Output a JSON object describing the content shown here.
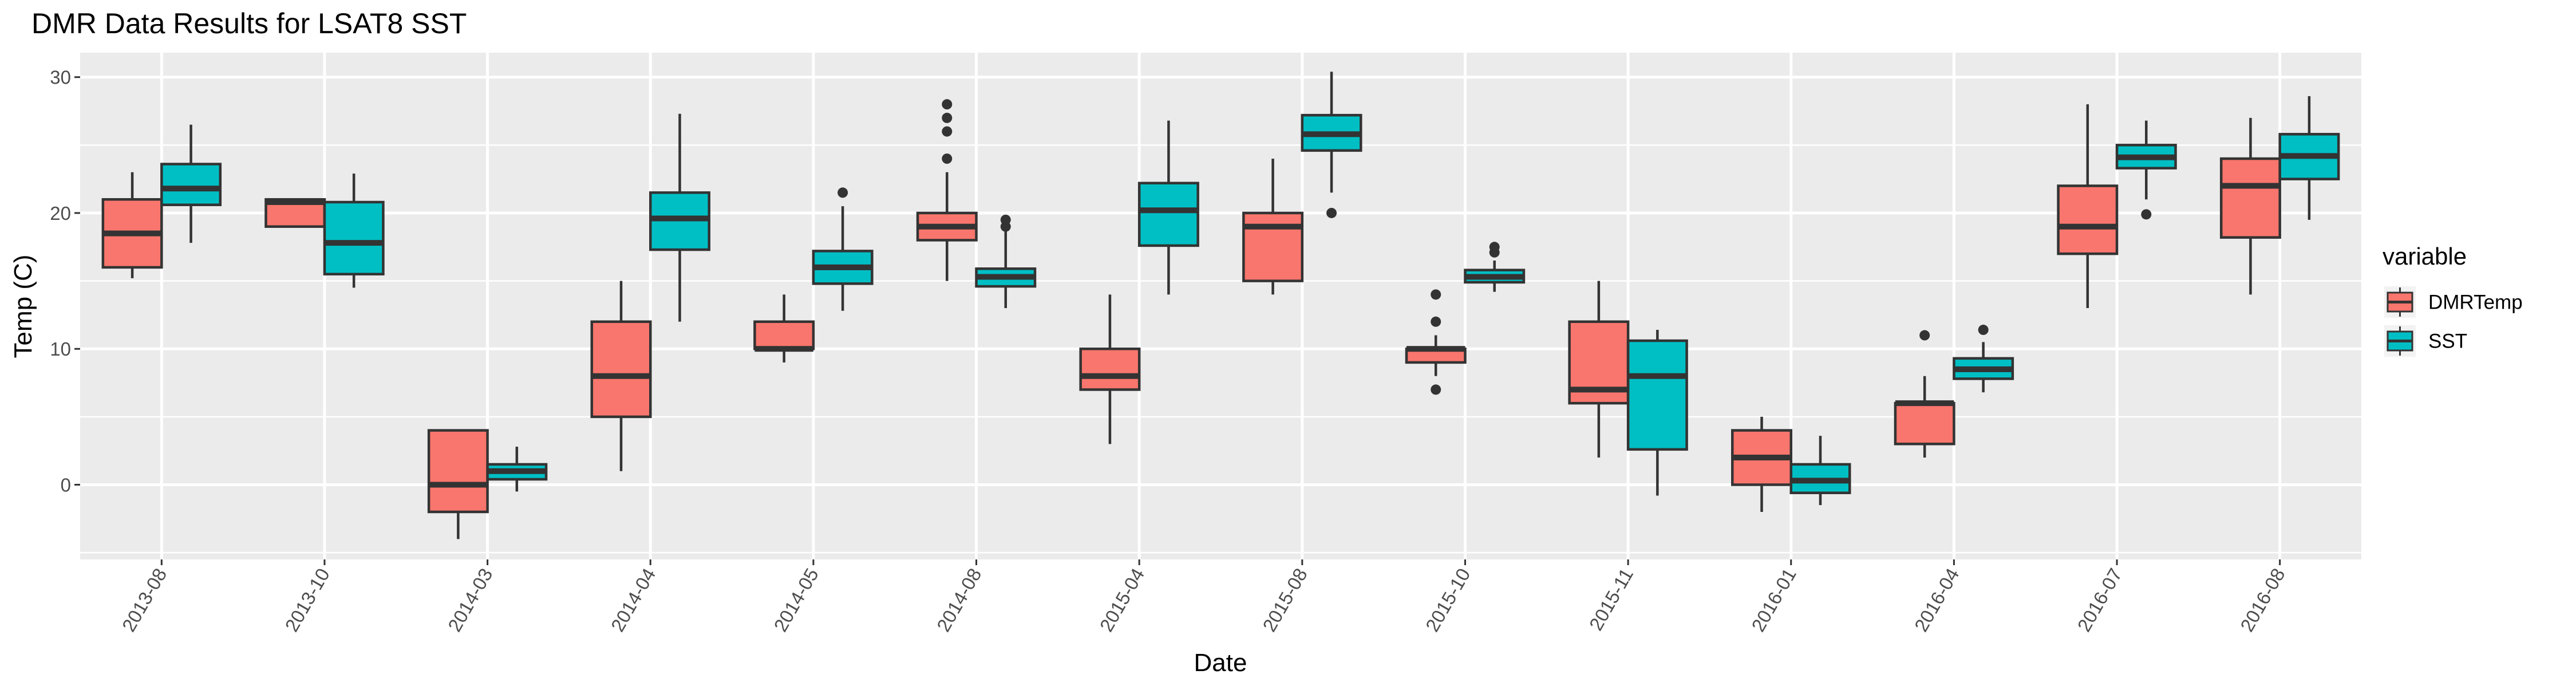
{
  "chart_data": {
    "type": "box",
    "title": "DMR Data Results for LSAT8 SST",
    "xlabel": "Date",
    "ylabel": "Temp (C)",
    "ylim": [
      -5.5,
      31.8
    ],
    "yticks": [
      0,
      10,
      20,
      30
    ],
    "categories": [
      "2013-08",
      "2013-10",
      "2014-03",
      "2014-04",
      "2014-05",
      "2014-08",
      "2015-04",
      "2015-08",
      "2015-10",
      "2015-11",
      "2016-01",
      "2016-04",
      "2016-07",
      "2016-08"
    ],
    "legend": {
      "title": "variable",
      "position": "right"
    },
    "grid": true,
    "series": [
      {
        "name": "DMRTemp",
        "color": "#F8766D",
        "boxes": [
          {
            "min": 15.2,
            "q1": 16.0,
            "median": 18.5,
            "q3": 21.0,
            "max": 23.0,
            "outliers": []
          },
          {
            "min": 19.0,
            "q1": 19.0,
            "median": 20.8,
            "q3": 21.0,
            "max": 21.0,
            "outliers": []
          },
          {
            "min": -4.0,
            "q1": -2.0,
            "median": 0.0,
            "q3": 4.0,
            "max": 4.0,
            "outliers": []
          },
          {
            "min": 1.0,
            "q1": 5.0,
            "median": 8.0,
            "q3": 12.0,
            "max": 15.0,
            "outliers": []
          },
          {
            "min": 9.0,
            "q1": 10.0,
            "median": 10.0,
            "q3": 12.0,
            "max": 14.0,
            "outliers": []
          },
          {
            "min": 15.0,
            "q1": 18.0,
            "median": 19.0,
            "q3": 20.0,
            "max": 23.0,
            "outliers": [
              24.0,
              26.0,
              27.0,
              28.0
            ]
          },
          {
            "min": 3.0,
            "q1": 7.0,
            "median": 8.0,
            "q3": 10.0,
            "max": 14.0,
            "outliers": []
          },
          {
            "min": 14.0,
            "q1": 15.0,
            "median": 19.0,
            "q3": 20.0,
            "max": 24.0,
            "outliers": []
          },
          {
            "min": 8.0,
            "q1": 9.0,
            "median": 10.0,
            "q3": 10.0,
            "max": 11.0,
            "outliers": [
              7.0,
              12.0,
              14.0
            ]
          },
          {
            "min": 2.0,
            "q1": 6.0,
            "median": 7.0,
            "q3": 12.0,
            "max": 15.0,
            "outliers": []
          },
          {
            "min": -2.0,
            "q1": 0.0,
            "median": 2.0,
            "q3": 4.0,
            "max": 5.0,
            "outliers": []
          },
          {
            "min": 2.0,
            "q1": 3.0,
            "median": 6.0,
            "q3": 6.0,
            "max": 8.0,
            "outliers": [
              11.0
            ]
          },
          {
            "min": 13.0,
            "q1": 17.0,
            "median": 19.0,
            "q3": 22.0,
            "max": 28.0,
            "outliers": []
          },
          {
            "min": 14.0,
            "q1": 18.2,
            "median": 22.0,
            "q3": 24.0,
            "max": 27.0,
            "outliers": []
          }
        ]
      },
      {
        "name": "SST",
        "color": "#00BFC4",
        "boxes": [
          {
            "min": 17.8,
            "q1": 20.6,
            "median": 21.8,
            "q3": 23.6,
            "max": 26.5,
            "outliers": []
          },
          {
            "min": 14.5,
            "q1": 15.5,
            "median": 17.8,
            "q3": 20.8,
            "max": 22.9,
            "outliers": []
          },
          {
            "min": -0.5,
            "q1": 0.4,
            "median": 1.0,
            "q3": 1.5,
            "max": 2.8,
            "outliers": []
          },
          {
            "min": 12.0,
            "q1": 17.3,
            "median": 19.6,
            "q3": 21.5,
            "max": 27.3,
            "outliers": []
          },
          {
            "min": 12.8,
            "q1": 14.8,
            "median": 16.0,
            "q3": 17.2,
            "max": 20.5,
            "outliers": [
              21.5
            ]
          },
          {
            "min": 13.0,
            "q1": 14.6,
            "median": 15.3,
            "q3": 15.9,
            "max": 18.8,
            "outliers": [
              19.0,
              19.5
            ]
          },
          {
            "min": 14.0,
            "q1": 17.6,
            "median": 20.2,
            "q3": 22.2,
            "max": 26.8,
            "outliers": []
          },
          {
            "min": 21.5,
            "q1": 24.6,
            "median": 25.8,
            "q3": 27.2,
            "max": 30.4,
            "outliers": [
              20.0
            ]
          },
          {
            "min": 14.2,
            "q1": 14.9,
            "median": 15.3,
            "q3": 15.8,
            "max": 16.5,
            "outliers": [
              17.1,
              17.5
            ]
          },
          {
            "min": -0.8,
            "q1": 2.6,
            "median": 8.0,
            "q3": 10.6,
            "max": 11.4,
            "outliers": []
          },
          {
            "min": -1.5,
            "q1": -0.6,
            "median": 0.3,
            "q3": 1.5,
            "max": 3.6,
            "outliers": []
          },
          {
            "min": 6.8,
            "q1": 7.8,
            "median": 8.5,
            "q3": 9.3,
            "max": 10.5,
            "outliers": [
              11.4
            ]
          },
          {
            "min": 21.0,
            "q1": 23.3,
            "median": 24.1,
            "q3": 25.0,
            "max": 26.8,
            "outliers": [
              19.9
            ]
          },
          {
            "min": 19.5,
            "q1": 22.5,
            "median": 24.2,
            "q3": 25.8,
            "max": 28.6,
            "outliers": []
          }
        ]
      }
    ]
  }
}
